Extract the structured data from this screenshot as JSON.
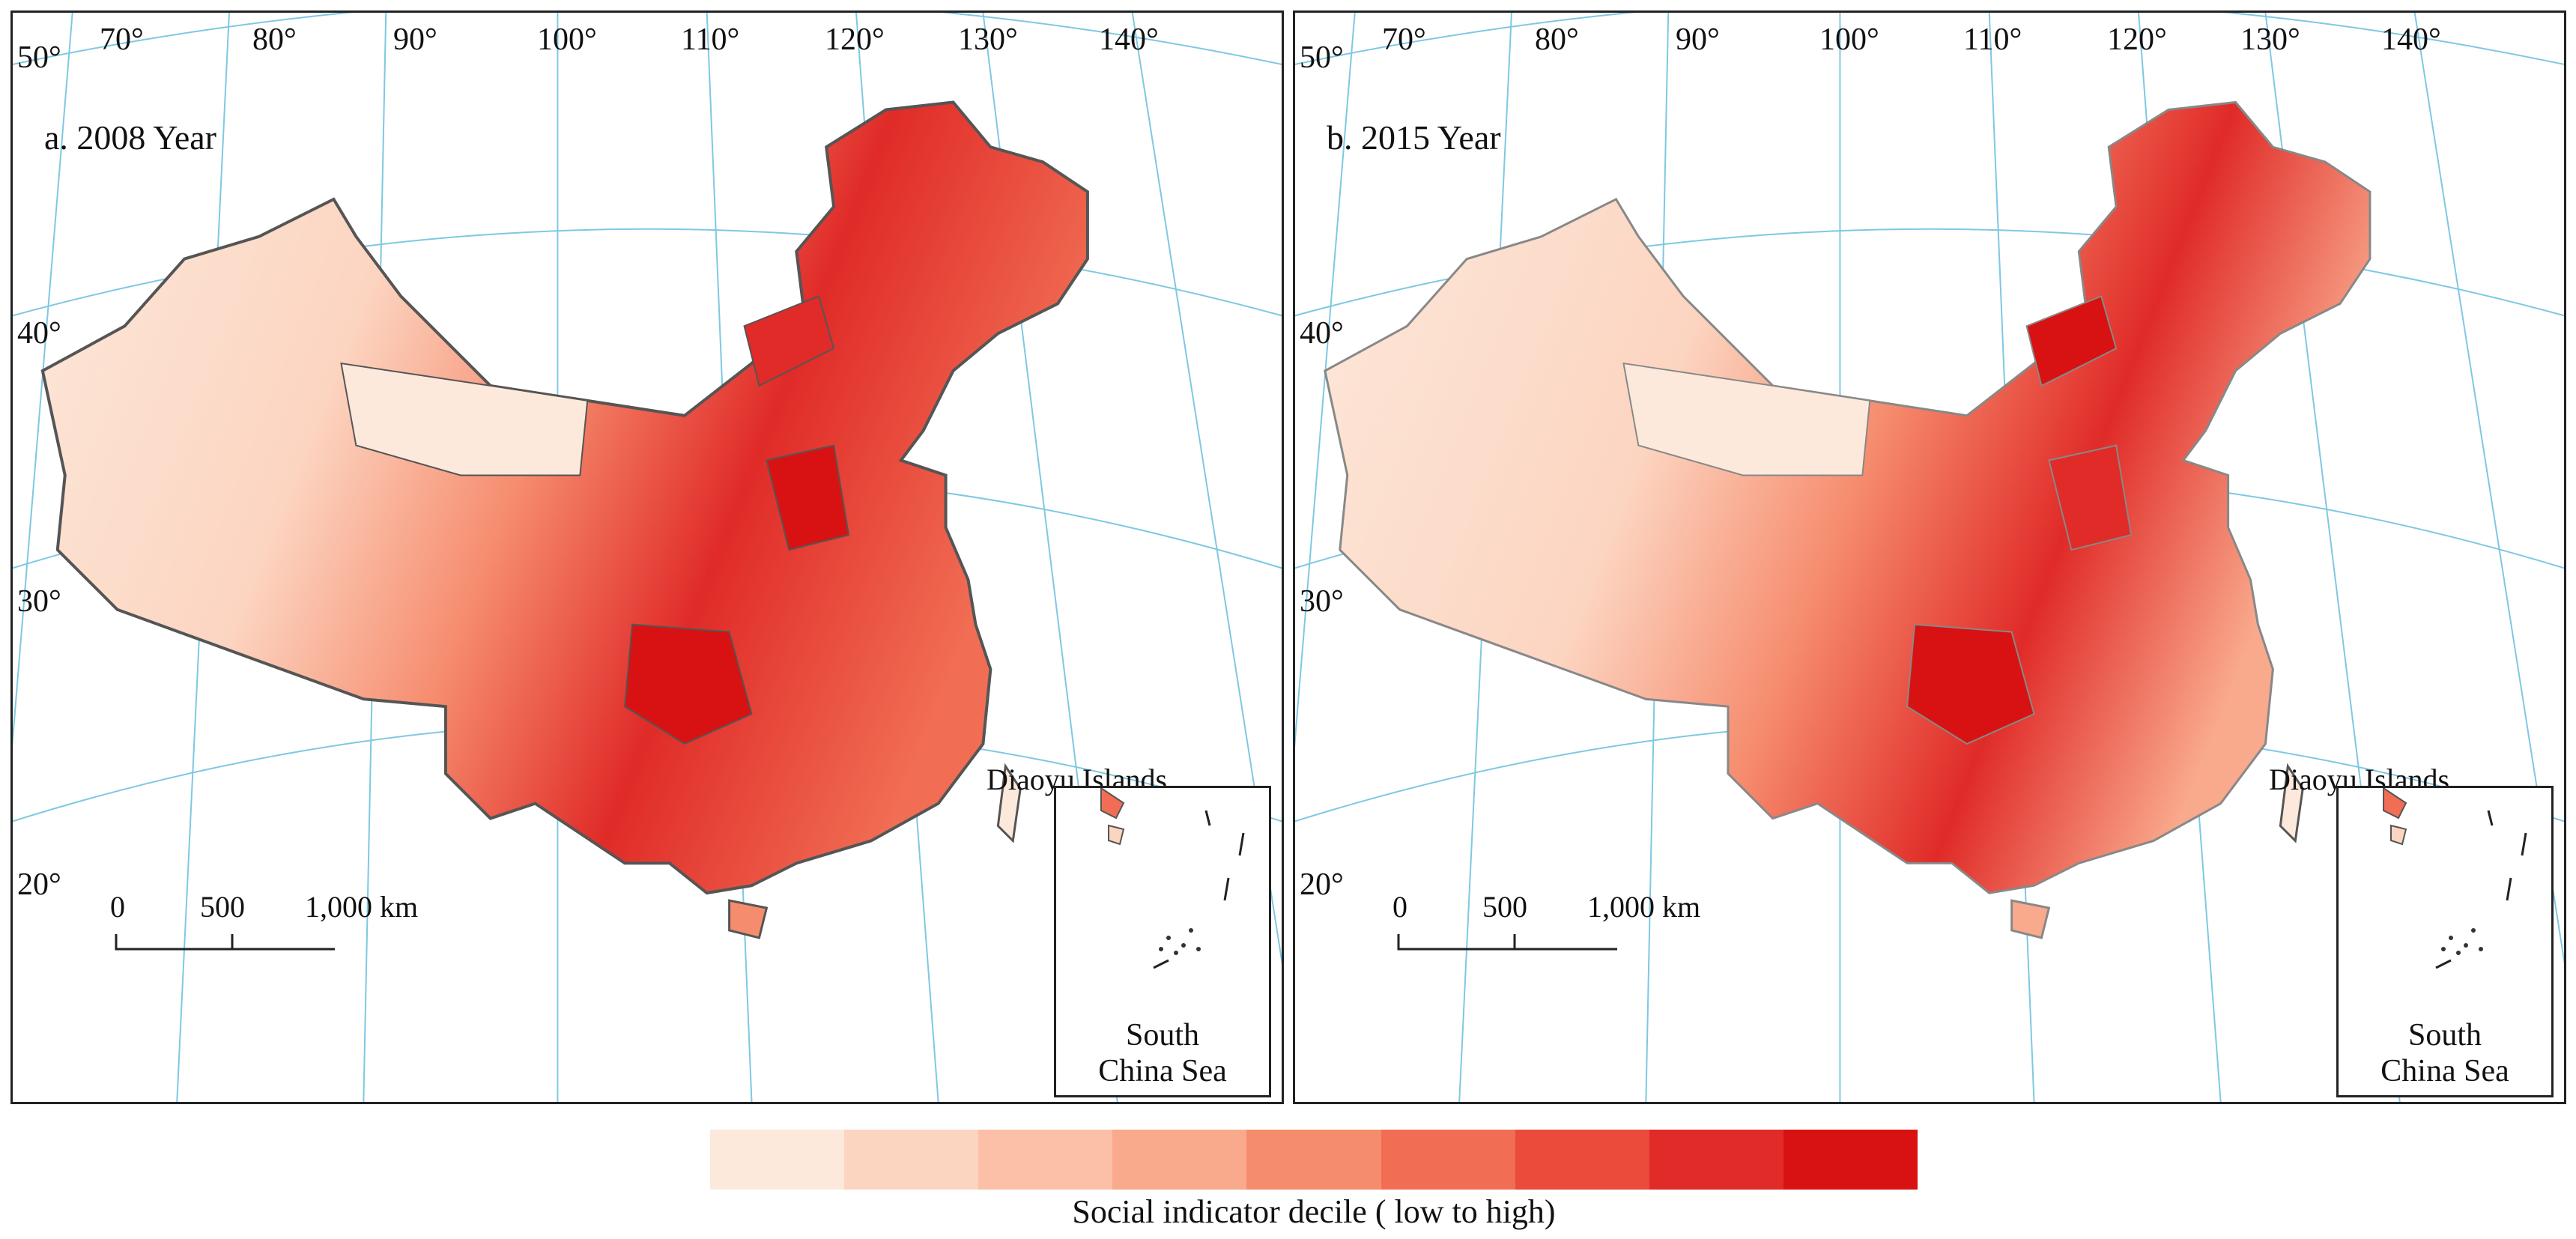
{
  "panels": [
    {
      "title": "a. 2008  Year",
      "lon_labels": [
        "70°",
        "80°",
        "90°",
        "100°",
        "110°",
        "120°",
        "130°",
        "140°"
      ],
      "lat_labels": [
        "50°",
        "40°",
        "30°",
        "20°"
      ],
      "scale": {
        "zero": "0",
        "mid": "500",
        "end": "1,000 km"
      },
      "diaoyu_label": "Diaoyu Islands",
      "inset_label_line1": "South",
      "inset_label_line2": "China Sea"
    },
    {
      "title": "b. 2015  Year",
      "lon_labels": [
        "70°",
        "80°",
        "90°",
        "100°",
        "110°",
        "120°",
        "130°",
        "140°"
      ],
      "lat_labels": [
        "50°",
        "40°",
        "30°",
        "20°"
      ],
      "scale": {
        "zero": "0",
        "mid": "500",
        "end": "1,000 km"
      },
      "diaoyu_label": "Diaoyu Islands",
      "inset_label_line1": "South",
      "inset_label_line2": "China Sea"
    }
  ],
  "legend": {
    "title": "Social indicator decile ( low to high)",
    "colors": [
      "#fde9dc",
      "#fcd5c1",
      "#fbc0a7",
      "#f9a98c",
      "#f68c6e",
      "#f16e54",
      "#ea4b3b",
      "#e02b28",
      "#d81212"
    ]
  },
  "map_colors": {
    "graticule": "#7ec8e3",
    "border": "#555555"
  }
}
